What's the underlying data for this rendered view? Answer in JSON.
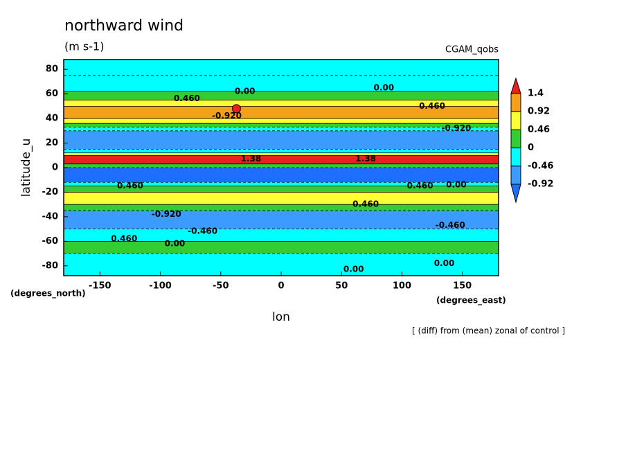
{
  "chart_data": {
    "type": "contour",
    "title": "northward wind",
    "subtitle": "(m s-1)",
    "run_label": "CGAM_qobs",
    "x_label": "lon",
    "y_label": "latitude_u",
    "x_units": "(degrees_east)",
    "y_units": "(degrees_north)",
    "footnote": "[ (diff) from (mean) zonal of control ]",
    "xlim": [
      -180,
      180
    ],
    "ylim": [
      -88,
      88
    ],
    "xticks": [
      -150,
      -100,
      -50,
      0,
      50,
      100,
      150
    ],
    "yticks": [
      -80,
      -60,
      -40,
      -20,
      0,
      20,
      40,
      60,
      80
    ],
    "levels": [
      -0.92,
      -0.46,
      0,
      0.46,
      0.92,
      1.4
    ],
    "colors": [
      "#1e6eff",
      "#3c9bff",
      "#00ffff",
      "#33cc33",
      "#ffff33",
      "#f5a01a",
      "#e8211c"
    ],
    "field": [
      {
        "lat": [
          75,
          88
        ],
        "value": -0.2
      },
      {
        "lat": [
          62,
          75
        ],
        "value": -0.3
      },
      {
        "lat": [
          55,
          62
        ],
        "value": 0.2
      },
      {
        "lat": [
          50,
          55
        ],
        "value": 0.6
      },
      {
        "lat": [
          40,
          50
        ],
        "value": 1.0
      },
      {
        "lat": [
          36,
          40
        ],
        "value": 0.6
      },
      {
        "lat": [
          33,
          36
        ],
        "value": 0.2
      },
      {
        "lat": [
          30,
          33
        ],
        "value": -0.3
      },
      {
        "lat": [
          15,
          30
        ],
        "value": -0.7
      },
      {
        "lat": [
          12,
          15
        ],
        "value": -0.3
      },
      {
        "lat": [
          10,
          12
        ],
        "value": 0.7
      },
      {
        "lat": [
          3,
          10
        ],
        "value": 1.6
      },
      {
        "lat": [
          0,
          3
        ],
        "value": 0.3
      },
      {
        "lat": [
          -12,
          0
        ],
        "value": -1.2
      },
      {
        "lat": [
          -15,
          -12
        ],
        "value": -0.3
      },
      {
        "lat": [
          -20,
          -15
        ],
        "value": 0.2
      },
      {
        "lat": [
          -30,
          -20
        ],
        "value": 0.6
      },
      {
        "lat": [
          -35,
          -30
        ],
        "value": 0.2
      },
      {
        "lat": [
          -50,
          -35
        ],
        "value": -0.6
      },
      {
        "lat": [
          -60,
          -50
        ],
        "value": -0.2
      },
      {
        "lat": [
          -70,
          -60
        ],
        "value": 0.3
      },
      {
        "lat": [
          -88,
          -70
        ],
        "value": -0.2
      }
    ],
    "contour_labels": [
      {
        "text": "0.460",
        "lon": -78,
        "lat": 56
      },
      {
        "text": "0.00",
        "lon": -30,
        "lat": 62
      },
      {
        "text": "0.00",
        "lon": 85,
        "lat": 65
      },
      {
        "text": "0.460",
        "lon": 125,
        "lat": 50
      },
      {
        "text": "-0.920",
        "lon": -45,
        "lat": 42
      },
      {
        "text": "-0.920",
        "lon": 145,
        "lat": 32
      },
      {
        "text": "1.38",
        "lon": -25,
        "lat": 7
      },
      {
        "text": "1.38",
        "lon": 70,
        "lat": 7
      },
      {
        "text": "0.460",
        "lon": -125,
        "lat": -15
      },
      {
        "text": "0.460",
        "lon": 115,
        "lat": -15
      },
      {
        "text": "0.00",
        "lon": 145,
        "lat": -14
      },
      {
        "text": "0.460",
        "lon": 70,
        "lat": -30
      },
      {
        "text": "-0.920",
        "lon": -95,
        "lat": -38
      },
      {
        "text": "-0.460",
        "lon": -65,
        "lat": -52
      },
      {
        "text": "-0.460",
        "lon": 140,
        "lat": -47
      },
      {
        "text": "0.460",
        "lon": -130,
        "lat": -58
      },
      {
        "text": "0.00",
        "lon": -88,
        "lat": -62
      },
      {
        "text": "0.00",
        "lon": 60,
        "lat": -83
      },
      {
        "text": "0.00",
        "lon": 135,
        "lat": -78
      }
    ],
    "marker": {
      "lon": -37,
      "lat": 48
    }
  }
}
